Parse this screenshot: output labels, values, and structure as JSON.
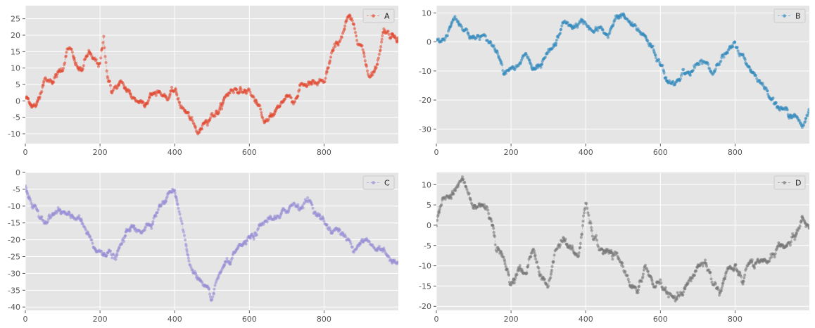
{
  "figure": {
    "background": "#ffffff",
    "axes_facecolor": "#e5e5e5",
    "grid_color": "#ffffff",
    "tick_color": "#555555"
  },
  "chart_data": [
    {
      "type": "scatter",
      "style": "marker dots with faint dashed connecting line (random walk)",
      "series": [
        {
          "name": "A",
          "color": "#e24a33",
          "x": [
            0,
            20,
            30,
            50,
            60,
            80,
            100,
            110,
            120,
            130,
            140,
            150,
            170,
            180,
            190,
            200,
            210,
            220,
            230,
            240,
            260,
            280,
            300,
            320,
            340,
            360,
            380,
            400,
            420,
            440,
            460,
            470,
            480,
            500,
            520,
            540,
            560,
            580,
            600,
            620,
            640,
            650,
            660,
            680,
            700,
            720,
            740,
            760,
            780,
            800,
            820,
            840,
            860,
            870,
            880,
            900,
            920,
            940,
            960,
            980,
            999
          ],
          "y": [
            1,
            -1,
            -2,
            7,
            6,
            7,
            10,
            15,
            16,
            12,
            10,
            9,
            15,
            12,
            12,
            11,
            19,
            8,
            3,
            4,
            5,
            2,
            0,
            0,
            2,
            3,
            1,
            3,
            -2,
            -5,
            -10,
            -9,
            -6,
            -4,
            -3,
            2,
            4,
            3,
            3,
            -1,
            -6,
            -7,
            -4,
            -2,
            2,
            0,
            5,
            5,
            5,
            5,
            14,
            18,
            24,
            25,
            22,
            17,
            8,
            10,
            22,
            20,
            20
          ]
        }
      ],
      "legend": [
        "A"
      ],
      "legend_position": "upper right",
      "xlim": [
        0,
        999
      ],
      "ylim": [
        -13,
        29
      ],
      "xticks": [
        0,
        200,
        400,
        600,
        800
      ],
      "yticks": [
        -10,
        -5,
        0,
        5,
        10,
        15,
        20,
        25
      ],
      "grid": true
    },
    {
      "type": "scatter",
      "style": "marker dots with faint dashed connecting line (random walk)",
      "series": [
        {
          "name": "B",
          "color": "#348abd",
          "x": [
            0,
            10,
            30,
            50,
            60,
            80,
            100,
            120,
            140,
            160,
            170,
            180,
            200,
            220,
            240,
            260,
            280,
            300,
            320,
            340,
            360,
            380,
            400,
            420,
            440,
            460,
            480,
            500,
            520,
            540,
            560,
            580,
            600,
            620,
            640,
            660,
            680,
            700,
            720,
            740,
            760,
            780,
            800,
            820,
            840,
            860,
            880,
            900,
            920,
            940,
            960,
            980,
            999
          ],
          "y": [
            1,
            0,
            3,
            9,
            7,
            4,
            1,
            2,
            0,
            -2,
            -5,
            -10,
            -8,
            -9,
            -4,
            -10,
            -9,
            -4,
            -1,
            7,
            5,
            6,
            7,
            3,
            5,
            1,
            9,
            9,
            6,
            4,
            2,
            -2,
            -8,
            -14,
            -14,
            -10,
            -11,
            -8,
            -7,
            -11,
            -5,
            -4,
            -1,
            -5,
            -9,
            -12,
            -16,
            -19,
            -23,
            -24,
            -25,
            -30,
            -23
          ]
        }
      ],
      "legend": [
        "B"
      ],
      "legend_position": "upper right",
      "xlim": [
        0,
        999
      ],
      "ylim": [
        -35,
        12.5
      ],
      "xticks": [
        0,
        200,
        400,
        600,
        800
      ],
      "yticks": [
        -30,
        -20,
        -10,
        0,
        10
      ],
      "grid": true
    },
    {
      "type": "scatter",
      "style": "marker dots with faint dashed connecting line (random walk)",
      "series": [
        {
          "name": "C",
          "color": "#988ed5",
          "x": [
            0,
            10,
            20,
            40,
            60,
            80,
            100,
            120,
            140,
            160,
            180,
            200,
            220,
            240,
            260,
            280,
            300,
            320,
            340,
            360,
            380,
            390,
            400,
            420,
            440,
            460,
            480,
            500,
            520,
            540,
            560,
            580,
            600,
            620,
            640,
            660,
            680,
            700,
            720,
            740,
            760,
            780,
            800,
            820,
            840,
            860,
            880,
            900,
            920,
            940,
            960,
            980,
            999
          ],
          "y": [
            -4,
            -7,
            -11,
            -13,
            -14,
            -12,
            -12,
            -14,
            -13,
            -17,
            -22,
            -24,
            -23,
            -26,
            -21,
            -16,
            -18,
            -16,
            -14,
            -10,
            -8,
            -5,
            -5,
            -15,
            -28,
            -30,
            -35,
            -38,
            -30,
            -27,
            -25,
            -22,
            -20,
            -18,
            -15,
            -13,
            -14,
            -11,
            -9,
            -10,
            -8,
            -12,
            -15,
            -17,
            -17,
            -20,
            -22,
            -20,
            -21,
            -23,
            -22,
            -27,
            -26
          ]
        }
      ],
      "legend": [
        "C"
      ],
      "legend_position": "upper right",
      "xlim": [
        0,
        999
      ],
      "ylim": [
        -41,
        0
      ],
      "xticks": [
        0,
        200,
        400,
        600,
        800
      ],
      "yticks": [
        -40,
        -35,
        -30,
        -25,
        -20,
        -15,
        -10,
        -5,
        0
      ],
      "grid": true
    },
    {
      "type": "scatter",
      "style": "marker dots with faint dashed connecting line (random walk)",
      "series": [
        {
          "name": "D",
          "color": "#777777",
          "x": [
            0,
            10,
            20,
            40,
            60,
            70,
            80,
            100,
            120,
            140,
            160,
            170,
            180,
            200,
            220,
            240,
            260,
            280,
            300,
            320,
            340,
            360,
            380,
            400,
            420,
            440,
            460,
            480,
            500,
            520,
            540,
            560,
            580,
            600,
            620,
            640,
            660,
            680,
            700,
            720,
            740,
            760,
            780,
            800,
            820,
            840,
            860,
            880,
            900,
            920,
            940,
            960,
            980,
            999
          ],
          "y": [
            0,
            5,
            8,
            7,
            10,
            11,
            9,
            4,
            5,
            4,
            -5,
            -6,
            -9,
            -14,
            -11,
            -12,
            -5,
            -13,
            -15,
            -6,
            -3,
            -6,
            -8,
            5,
            -3,
            -6,
            -7,
            -8,
            -10,
            -14,
            -17,
            -10,
            -15,
            -14,
            -17,
            -19,
            -17,
            -14,
            -10,
            -9,
            -14,
            -16,
            -11,
            -11,
            -14,
            -9,
            -10,
            -10,
            -7,
            -5,
            -5,
            -3,
            2,
            -1
          ]
        }
      ],
      "legend": [
        "D"
      ],
      "legend_position": "upper right",
      "xlim": [
        0,
        999
      ],
      "ylim": [
        -21,
        13
      ],
      "xticks": [
        0,
        200,
        400,
        600,
        800
      ],
      "yticks": [
        -20,
        -15,
        -10,
        -5,
        0,
        5,
        10
      ],
      "grid": true
    }
  ]
}
